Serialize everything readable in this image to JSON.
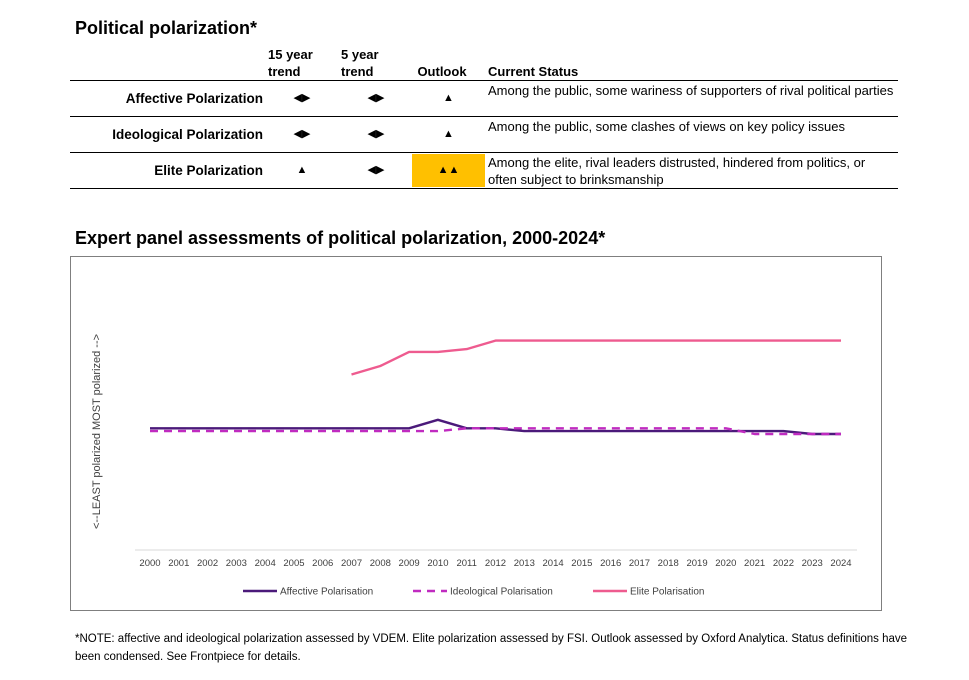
{
  "table": {
    "title": "Political polarization*",
    "headers": {
      "trend15": "15 year trend",
      "trend5": "5 year trend",
      "outlook": "Outlook",
      "status": "Current Status"
    },
    "rows": [
      {
        "label": "Affective Polarization",
        "trend15": "◀▶",
        "trend5": "◀▶",
        "outlook": "▲",
        "outlook_highlight": false,
        "status": "Among the public, some wariness of supporters of rival political parties"
      },
      {
        "label": "Ideological Polarization",
        "trend15": "◀▶",
        "trend5": "◀▶",
        "outlook": "▲",
        "outlook_highlight": false,
        "status": "Among the public, some clashes of views on key policy issues"
      },
      {
        "label": "Elite Polarization",
        "trend15": "▲",
        "trend5": "◀▶",
        "outlook": "▲▲",
        "outlook_highlight": true,
        "status": "Among the elite, rival leaders distrusted, hindered from politics, or often subject to brinksmanship"
      }
    ],
    "highlight_color": "#FFC000"
  },
  "chart_data": {
    "type": "line",
    "title": "Expert panel assessments of political polarization, 2000-2024*",
    "xlabel": "",
    "ylabel_top": "MOST polarized -->",
    "ylabel_bottom": "<--LEAST polarized",
    "x": [
      2000,
      2001,
      2002,
      2003,
      2004,
      2005,
      2006,
      2007,
      2008,
      2009,
      2010,
      2011,
      2012,
      2013,
      2014,
      2015,
      2016,
      2017,
      2018,
      2019,
      2020,
      2021,
      2022,
      2023,
      2024
    ],
    "ylim": [
      0,
      10
    ],
    "grid": false,
    "legend_position": "bottom",
    "series": [
      {
        "name": "Affective Polarisation",
        "color": "#4B1A7A",
        "dash": "solid",
        "values": [
          4.3,
          4.3,
          4.3,
          4.3,
          4.3,
          4.3,
          4.3,
          4.3,
          4.3,
          4.3,
          4.6,
          4.3,
          4.3,
          4.2,
          4.2,
          4.2,
          4.2,
          4.2,
          4.2,
          4.2,
          4.2,
          4.2,
          4.2,
          4.1,
          4.1
        ]
      },
      {
        "name": "Ideological Polarisation",
        "color": "#C02BC0",
        "dash": "dashed",
        "values": [
          4.2,
          4.2,
          4.2,
          4.2,
          4.2,
          4.2,
          4.2,
          4.2,
          4.2,
          4.2,
          4.2,
          4.3,
          4.3,
          4.3,
          4.3,
          4.3,
          4.3,
          4.3,
          4.3,
          4.3,
          4.3,
          4.1,
          4.1,
          4.1,
          4.1
        ]
      },
      {
        "name": "Elite Polarisation",
        "color": "#EE5B8F",
        "dash": "solid",
        "values": [
          null,
          null,
          null,
          null,
          null,
          null,
          null,
          6.2,
          6.5,
          7.0,
          7.0,
          7.1,
          7.4,
          7.4,
          7.4,
          7.4,
          7.4,
          7.4,
          7.4,
          7.4,
          7.4,
          7.4,
          7.4,
          7.4,
          7.4
        ]
      }
    ]
  },
  "footnote": "*NOTE: affective and ideological polarization assessed by VDEM. Elite polarization assessed by FSI. Outlook assessed by Oxford Analytica. Status definitions have been condensed. See Frontpiece for details."
}
